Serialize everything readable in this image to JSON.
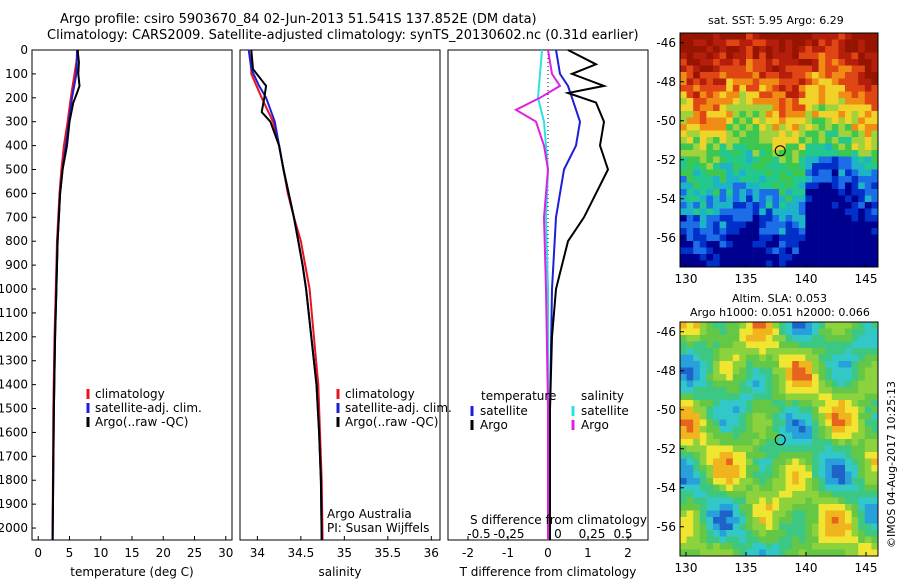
{
  "title_line1": "Argo profile: csiro 5903670_84 02-Jun-2013 51.541S 137.852E (DM data)",
  "title_line2": "Climatology: CARS2009. Satellite-adjusted climatology: synTS_20130602.nc (0.31d earlier)",
  "colors": {
    "climatology": "#e8141e",
    "satellite": "#1e1ed7",
    "argo": "#000000",
    "s_satellite": "#2ee0e0",
    "s_argo": "#e020e0"
  },
  "chart_data": [
    {
      "type": "line",
      "name_id": "temperature-panel",
      "xlabel": "temperature (deg C)",
      "xlim": [
        -1,
        31
      ],
      "xticks": [
        0,
        5,
        10,
        15,
        20,
        25,
        30
      ],
      "ylim": [
        0,
        2050
      ],
      "yticks": [
        0,
        100,
        200,
        300,
        400,
        500,
        600,
        700,
        800,
        900,
        1000,
        1100,
        1200,
        1300,
        1400,
        1500,
        1600,
        1700,
        1800,
        1900,
        2000
      ],
      "legend": [
        "climatology",
        "satellite-adj. clim.",
        "Argo(..raw -QC)"
      ],
      "legend_position": "lower-right",
      "series": [
        {
          "name": "climatology",
          "color": "#e8141e",
          "depth": [
            0,
            100,
            200,
            300,
            400,
            500,
            600,
            800,
            1000,
            1200,
            1500,
            2050
          ],
          "values": [
            6.4,
            5.8,
            5.2,
            4.7,
            4.1,
            3.7,
            3.4,
            3.0,
            2.8,
            2.6,
            2.4,
            2.3
          ]
        },
        {
          "name": "satellite-adj. clim.",
          "color": "#1e1ed7",
          "depth": [
            0,
            100,
            200,
            300,
            400,
            500,
            600,
            800,
            1000,
            1200,
            1500,
            2050
          ],
          "values": [
            6.2,
            6.1,
            5.4,
            4.9,
            4.4,
            3.9,
            3.5,
            3.1,
            2.9,
            2.7,
            2.5,
            2.3
          ]
        },
        {
          "name": "Argo(..raw -QC)",
          "color": "#000000",
          "depth": [
            0,
            50,
            100,
            150,
            180,
            220,
            300,
            400,
            500,
            600,
            700,
            800,
            1000,
            1200,
            1500,
            2050
          ],
          "values": [
            6.3,
            6.5,
            6.4,
            6.6,
            6.2,
            5.6,
            5.0,
            4.6,
            3.9,
            3.5,
            3.3,
            3.1,
            2.9,
            2.7,
            2.5,
            2.3
          ]
        }
      ]
    },
    {
      "type": "line",
      "name_id": "salinity-panel",
      "xlabel": "salinity",
      "xlim": [
        33.8,
        36.1
      ],
      "xticks": [
        34,
        34.5,
        35,
        35.5,
        36
      ],
      "ylim": [
        0,
        2050
      ],
      "legend": [
        "climatology",
        "satellite-adj. clim.",
        "Argo(..raw -QC)"
      ],
      "legend_position": "lower-right",
      "annotation_line1": "Argo Australia",
      "annotation_line2": "PI: Susan Wijffels",
      "series": [
        {
          "name": "climatology",
          "color": "#e8141e",
          "depth": [
            0,
            100,
            200,
            300,
            400,
            500,
            600,
            700,
            800,
            900,
            1000,
            1200,
            1400,
            1600,
            1800,
            2050
          ],
          "values": [
            33.93,
            33.93,
            34.05,
            34.18,
            34.25,
            34.3,
            34.35,
            34.42,
            34.5,
            34.55,
            34.6,
            34.65,
            34.7,
            34.72,
            34.74,
            34.75
          ]
        },
        {
          "name": "satellite-adj. clim.",
          "color": "#1e1ed7",
          "depth": [
            0,
            80,
            150,
            200,
            300,
            400,
            500,
            600,
            700,
            800,
            900,
            1000,
            1200,
            1400,
            1600,
            1800,
            2050
          ],
          "values": [
            33.9,
            33.93,
            34.02,
            34.1,
            34.2,
            34.25,
            34.3,
            34.36,
            34.42,
            34.47,
            34.52,
            34.56,
            34.62,
            34.68,
            34.71,
            34.73,
            34.74
          ]
        },
        {
          "name": "Argo(..raw -QC)",
          "color": "#000000",
          "depth": [
            0,
            80,
            150,
            200,
            260,
            300,
            400,
            500,
            600,
            700,
            800,
            900,
            1000,
            1200,
            1400,
            1600,
            1800,
            2050
          ],
          "values": [
            33.93,
            33.95,
            34.1,
            34.08,
            34.05,
            34.15,
            34.25,
            34.3,
            34.36,
            34.42,
            34.47,
            34.52,
            34.56,
            34.62,
            34.68,
            34.71,
            34.73,
            34.74
          ]
        }
      ]
    },
    {
      "type": "line",
      "name_id": "difference-panel",
      "xlabel": "T difference from climatology",
      "xlabel_top": "S difference from climatology",
      "xlim": [
        -2.5,
        2.5
      ],
      "xticks": [
        -2,
        -1,
        0,
        1,
        2
      ],
      "xticks_top": [
        "-0.5",
        "-0.25",
        "0",
        "0.25",
        "0.5"
      ],
      "ylim": [
        0,
        2050
      ],
      "legend_temperature_title": "temperature",
      "legend_salinity_title": "salinity",
      "legend_temperature": [
        "satellite",
        "Argo"
      ],
      "legend_salinity": [
        "satellite",
        "Argo"
      ],
      "series": [
        {
          "name": "T satellite",
          "color": "#1e1ed7",
          "depth": [
            0,
            100,
            150,
            200,
            300,
            400,
            500,
            700,
            1000,
            1500,
            2050
          ],
          "values": [
            0.2,
            0.3,
            0.5,
            0.6,
            0.8,
            0.7,
            0.4,
            0.2,
            0.1,
            0.05,
            0.05
          ]
        },
        {
          "name": "T Argo",
          "color": "#000000",
          "depth": [
            0,
            60,
            100,
            150,
            180,
            220,
            300,
            400,
            500,
            600,
            700,
            800,
            1000,
            1200,
            1500,
            2050
          ],
          "values": [
            0.5,
            1.2,
            0.6,
            1.4,
            0.5,
            1.2,
            1.4,
            1.3,
            1.5,
            1.2,
            0.9,
            0.5,
            0.2,
            0.1,
            0.05,
            0.05
          ]
        },
        {
          "name": "S satellite",
          "color": "#2ee0e0",
          "depth": [
            0,
            100,
            200,
            300,
            400,
            500,
            700,
            1000,
            1500,
            2050
          ],
          "values": [
            -0.15,
            -0.2,
            -0.25,
            -0.1,
            -0.05,
            0.0,
            -0.05,
            0.0,
            0.0,
            0.0
          ]
        },
        {
          "name": "S Argo",
          "color": "#e020e0",
          "depth": [
            0,
            100,
            150,
            200,
            250,
            300,
            400,
            500,
            700,
            1000,
            1500,
            2050
          ],
          "values": [
            0.0,
            0.1,
            0.3,
            -0.2,
            -0.8,
            -0.3,
            -0.1,
            0.0,
            -0.1,
            -0.05,
            0.0,
            0.0
          ]
        }
      ]
    },
    {
      "type": "heatmap",
      "name_id": "sst-map",
      "title": "sat. SST: 5.95  Argo: 6.29",
      "xlim": [
        129.5,
        146
      ],
      "ylim": [
        -57.5,
        -45.5
      ],
      "xticks": [
        130,
        135,
        140,
        145
      ],
      "yticks": [
        -46,
        -48,
        -50,
        -52,
        -54,
        -56
      ],
      "marker": [
        137.852,
        -51.541
      ]
    },
    {
      "type": "heatmap",
      "name_id": "sla-map",
      "title_line1": "Altim. SLA: 0.053",
      "title_line2": "Argo h1000: 0.051  h2000: 0.066",
      "xlim": [
        129.5,
        146
      ],
      "ylim": [
        -57.5,
        -45.5
      ],
      "xticks": [
        130,
        135,
        140,
        145
      ],
      "yticks": [
        -46,
        -48,
        -50,
        -52,
        -54,
        -56
      ],
      "marker": [
        137.852,
        -51.541
      ]
    }
  ],
  "footer": "©IMOS 04-Aug-2017 10:25:13"
}
